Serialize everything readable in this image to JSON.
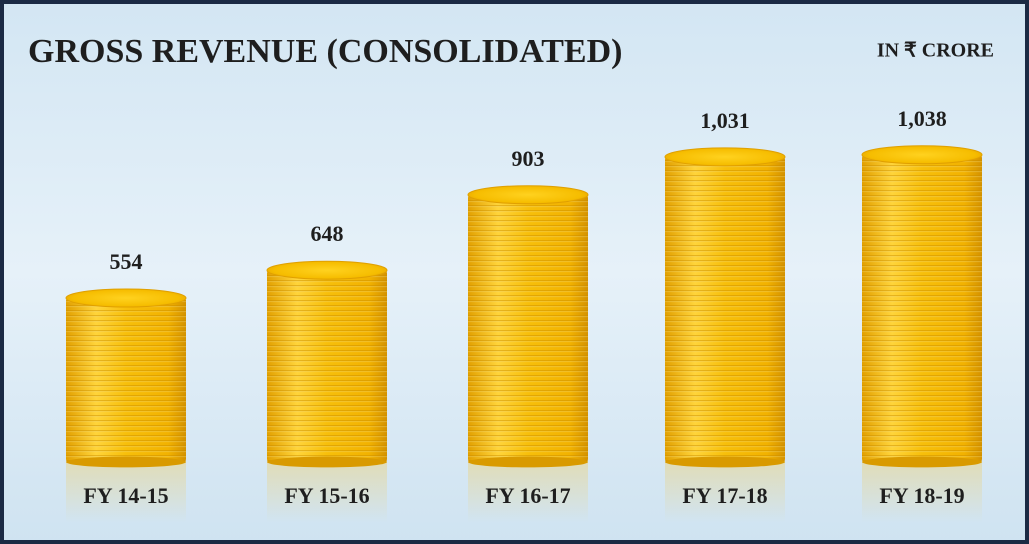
{
  "chart_data": {
    "type": "bar",
    "title": "GROSS REVENUE (CONSOLIDATED)",
    "subtitle": "IN ₹ CRORE",
    "categories": [
      "FY 14-15",
      "FY 15-16",
      "FY 16-17",
      "FY 17-18",
      "FY 18-19"
    ],
    "values": [
      554,
      648,
      903,
      1031,
      1038
    ],
    "value_labels": [
      "554",
      "648",
      "903",
      "1,031",
      "1,038"
    ],
    "color": "#f5b800"
  }
}
